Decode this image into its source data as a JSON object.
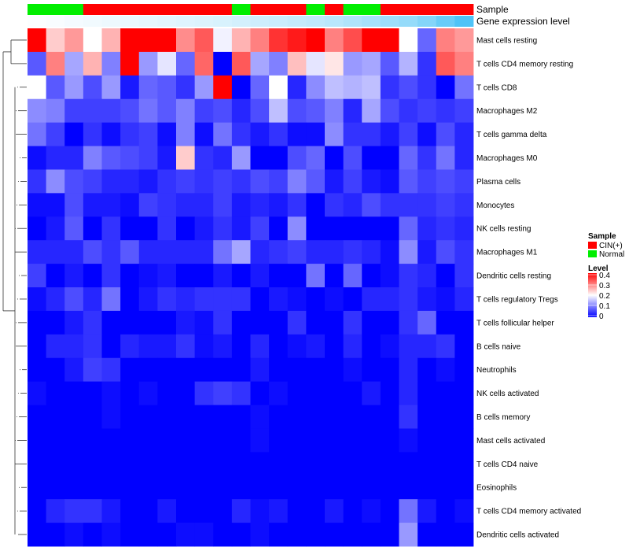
{
  "chart_data": {
    "type": "heatmap",
    "title": "",
    "rows": [
      "Mast cells resting",
      "T cells CD4 memory resting",
      "T cells CD8",
      "Macrophages M2",
      "T cells gamma delta",
      "Macrophages M0",
      "Plasma cells",
      "Monocytes",
      "NK cells resting",
      "Macrophages M1",
      "Dendritic cells resting",
      "T cells regulatory  Tregs",
      "T cells follicular helper",
      "B cells naive",
      "Neutrophils",
      "NK cells activated",
      "B cells memory",
      "Mast cells activated",
      "T cells CD4 naive",
      "Eosinophils",
      "T cells CD4 memory activated",
      "Dendritic cells activated"
    ],
    "n_columns": 24,
    "values": [
      [
        0.4,
        0.24,
        0.28,
        0.2,
        0.26,
        0.4,
        0.4,
        0.4,
        0.29,
        0.33,
        0.19,
        0.26,
        0.3,
        0.36,
        0.38,
        0.4,
        0.3,
        0.34,
        0.4,
        0.4,
        0.2,
        0.08,
        0.3,
        0.28
      ],
      [
        0.07,
        0.3,
        0.13,
        0.26,
        0.1,
        0.4,
        0.12,
        0.18,
        0.08,
        0.32,
        0.0,
        0.33,
        0.13,
        0.1,
        0.25,
        0.18,
        0.22,
        0.12,
        0.13,
        0.07,
        0.14,
        0.04,
        0.33,
        0.3
      ],
      [
        0.2,
        0.07,
        0.12,
        0.06,
        0.12,
        0.02,
        0.08,
        0.07,
        0.04,
        0.12,
        0.4,
        0.0,
        0.08,
        0.2,
        0.03,
        0.11,
        0.15,
        0.14,
        0.15,
        0.04,
        0.06,
        0.04,
        0.0,
        0.09
      ],
      [
        0.11,
        0.1,
        0.05,
        0.05,
        0.05,
        0.06,
        0.09,
        0.07,
        0.1,
        0.05,
        0.06,
        0.03,
        0.06,
        0.15,
        0.06,
        0.07,
        0.1,
        0.03,
        0.13,
        0.06,
        0.04,
        0.05,
        0.04,
        0.05
      ],
      [
        0.09,
        0.05,
        0.0,
        0.04,
        0.01,
        0.04,
        0.05,
        0.01,
        0.1,
        0.01,
        0.09,
        0.04,
        0.02,
        0.04,
        0.01,
        0.01,
        0.11,
        0.04,
        0.04,
        0.02,
        0.05,
        0.01,
        0.06,
        0.03
      ],
      [
        0.01,
        0.03,
        0.03,
        0.1,
        0.07,
        0.06,
        0.05,
        0.02,
        0.24,
        0.04,
        0.03,
        0.12,
        0.0,
        0.0,
        0.06,
        0.08,
        0.0,
        0.06,
        0.0,
        0.0,
        0.08,
        0.04,
        0.09,
        0.03
      ],
      [
        0.04,
        0.11,
        0.06,
        0.05,
        0.03,
        0.03,
        0.02,
        0.04,
        0.05,
        0.04,
        0.05,
        0.04,
        0.06,
        0.05,
        0.1,
        0.07,
        0.02,
        0.05,
        0.02,
        0.01,
        0.07,
        0.05,
        0.06,
        0.05
      ],
      [
        0.01,
        0.01,
        0.06,
        0.02,
        0.02,
        0.01,
        0.05,
        0.04,
        0.03,
        0.03,
        0.05,
        0.02,
        0.03,
        0.02,
        0.04,
        0.0,
        0.04,
        0.03,
        0.06,
        0.04,
        0.04,
        0.04,
        0.05,
        0.04
      ],
      [
        0.0,
        0.02,
        0.07,
        0.0,
        0.04,
        0.0,
        0.0,
        0.04,
        0.0,
        0.02,
        0.04,
        0.02,
        0.05,
        0.0,
        0.11,
        0.0,
        0.0,
        0.0,
        0.0,
        0.0,
        0.08,
        0.03,
        0.04,
        0.03
      ],
      [
        0.03,
        0.03,
        0.03,
        0.06,
        0.04,
        0.07,
        0.03,
        0.03,
        0.03,
        0.03,
        0.09,
        0.13,
        0.03,
        0.04,
        0.05,
        0.03,
        0.03,
        0.04,
        0.03,
        0.01,
        0.11,
        0.02,
        0.06,
        0.04
      ],
      [
        0.05,
        0.0,
        0.02,
        0.0,
        0.04,
        0.0,
        0.01,
        0.02,
        0.0,
        0.0,
        0.02,
        0.0,
        0.02,
        0.0,
        0.0,
        0.09,
        0.0,
        0.08,
        0.0,
        0.01,
        0.04,
        0.03,
        0.0,
        0.04
      ],
      [
        0.01,
        0.03,
        0.06,
        0.03,
        0.09,
        0.0,
        0.02,
        0.04,
        0.03,
        0.04,
        0.04,
        0.04,
        0.0,
        0.02,
        0.01,
        0.0,
        0.01,
        0.0,
        0.03,
        0.03,
        0.04,
        0.02,
        0.01,
        0.03
      ],
      [
        0.0,
        0.0,
        0.02,
        0.04,
        0.0,
        0.0,
        0.0,
        0.0,
        0.02,
        0.01,
        0.04,
        0.0,
        0.0,
        0.0,
        0.04,
        0.0,
        0.0,
        0.04,
        0.0,
        0.0,
        0.04,
        0.08,
        0.0,
        0.0
      ],
      [
        0.0,
        0.03,
        0.03,
        0.04,
        0.0,
        0.03,
        0.02,
        0.02,
        0.04,
        0.01,
        0.02,
        0.0,
        0.03,
        0.0,
        0.01,
        0.02,
        0.0,
        0.03,
        0.0,
        0.01,
        0.03,
        0.03,
        0.04,
        0.0
      ],
      [
        0.0,
        0.0,
        0.02,
        0.05,
        0.04,
        0.0,
        0.0,
        0.0,
        0.0,
        0.0,
        0.0,
        0.0,
        0.02,
        0.0,
        0.0,
        0.0,
        0.0,
        0.01,
        0.0,
        0.0,
        0.03,
        0.0,
        0.01,
        0.0
      ],
      [
        0.01,
        0.0,
        0.0,
        0.0,
        0.01,
        0.0,
        0.01,
        0.0,
        0.0,
        0.04,
        0.05,
        0.04,
        0.0,
        0.01,
        0.0,
        0.0,
        0.0,
        0.0,
        0.02,
        0.0,
        0.03,
        0.0,
        0.0,
        0.0
      ],
      [
        0.0,
        0.0,
        0.0,
        0.0,
        0.01,
        0.0,
        0.0,
        0.0,
        0.0,
        0.0,
        0.0,
        0.0,
        0.01,
        0.0,
        0.0,
        0.0,
        0.0,
        0.0,
        0.0,
        0.0,
        0.04,
        0.0,
        0.0,
        0.0
      ],
      [
        0.0,
        0.0,
        0.0,
        0.0,
        0.0,
        0.0,
        0.0,
        0.0,
        0.0,
        0.0,
        0.0,
        0.0,
        0.01,
        0.0,
        0.0,
        0.0,
        0.0,
        0.0,
        0.0,
        0.0,
        0.01,
        0.0,
        0.0,
        0.0
      ],
      [
        0.0,
        0.0,
        0.0,
        0.0,
        0.0,
        0.0,
        0.0,
        0.0,
        0.0,
        0.0,
        0.0,
        0.0,
        0.0,
        0.0,
        0.0,
        0.0,
        0.0,
        0.0,
        0.0,
        0.0,
        0.0,
        0.0,
        0.0,
        0.0
      ],
      [
        0.0,
        0.0,
        0.0,
        0.0,
        0.0,
        0.0,
        0.0,
        0.0,
        0.0,
        0.0,
        0.0,
        0.0,
        0.0,
        0.0,
        0.0,
        0.0,
        0.0,
        0.0,
        0.0,
        0.0,
        0.0,
        0.0,
        0.0,
        0.0
      ],
      [
        0.0,
        0.03,
        0.04,
        0.04,
        0.02,
        0.0,
        0.0,
        0.02,
        0.0,
        0.0,
        0.0,
        0.03,
        0.01,
        0.02,
        0.0,
        0.0,
        0.02,
        0.0,
        0.01,
        0.0,
        0.09,
        0.02,
        0.0,
        0.01
      ],
      [
        0.0,
        0.0,
        0.01,
        0.0,
        0.01,
        0.0,
        0.0,
        0.0,
        0.01,
        0.01,
        0.0,
        0.0,
        0.01,
        0.0,
        0.0,
        0.0,
        0.0,
        0.0,
        0.0,
        0.0,
        0.12,
        0.0,
        0.0,
        0.0
      ]
    ],
    "sample_annotation": {
      "label": "Sample",
      "values": [
        "Normal",
        "Normal",
        "Normal",
        "CIN(+)",
        "CIN(+)",
        "CIN(+)",
        "CIN(+)",
        "CIN(+)",
        "CIN(+)",
        "CIN(+)",
        "CIN(+)",
        "Normal",
        "CIN(+)",
        "CIN(+)",
        "CIN(+)",
        "Normal",
        "CIN(+)",
        "Normal",
        "Normal",
        "CIN(+)",
        "CIN(+)",
        "CIN(+)",
        "CIN(+)",
        "CIN(+)"
      ]
    },
    "expression_annotation": {
      "label": "Gene expression level",
      "values": [
        0.02,
        0.04,
        0.06,
        0.08,
        0.1,
        0.12,
        0.14,
        0.16,
        0.18,
        0.2,
        0.22,
        0.25,
        0.28,
        0.3,
        0.33,
        0.36,
        0.4,
        0.45,
        0.5,
        0.55,
        0.6,
        0.7,
        0.85,
        1.0
      ]
    },
    "legend": {
      "sample_title": "Sample",
      "sample_items": [
        {
          "label": "CIN(+)",
          "color": "#ff0000"
        },
        {
          "label": "Normal",
          "color": "#00ee00"
        }
      ],
      "level_title": "Level",
      "level_ticks": [
        "0.4",
        "0.3",
        "0.2",
        "0.1",
        "0"
      ],
      "level_range": [
        0,
        0.4
      ],
      "placement": "right"
    },
    "colors": {
      "low": "#0000ff",
      "mid": "#ffffff",
      "high": "#ff0000",
      "expr_low": "#ffffff",
      "expr_high": "#4fc3f7"
    }
  }
}
